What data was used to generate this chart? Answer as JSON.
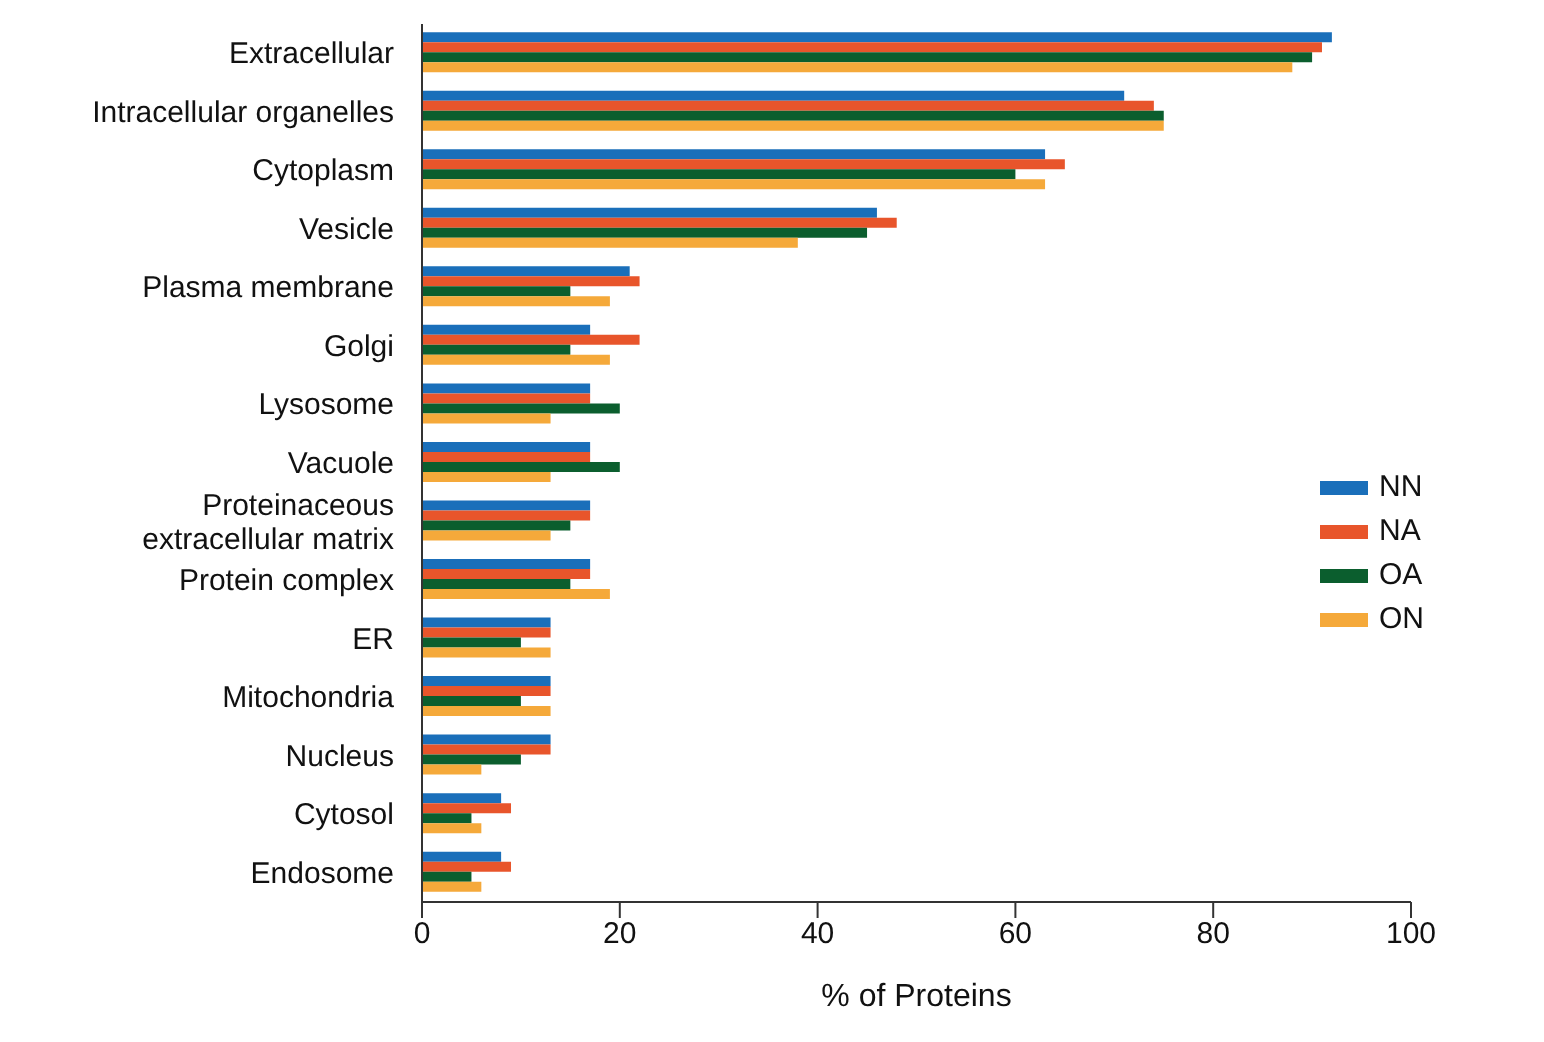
{
  "chart_data": {
    "type": "bar",
    "orientation": "horizontal",
    "xlabel": "% of Proteins",
    "categories": [
      "Extracellular",
      "Intracellular organelles",
      "Cytoplasm",
      "Vesicle",
      "Plasma membrane",
      "Golgi",
      "Lysosome",
      "Vacuole",
      "Proteinaceous extracellular matrix",
      "Protein complex",
      "ER",
      "Mitochondria",
      "Nucleus",
      "Cytosol",
      "Endosome"
    ],
    "series": [
      {
        "name": "NN",
        "color": "#1a6fba",
        "values": [
          92,
          71,
          63,
          46,
          21,
          17,
          17,
          17,
          17,
          17,
          13,
          13,
          13,
          8,
          8
        ]
      },
      {
        "name": "NA",
        "color": "#e8552b",
        "values": [
          91,
          74,
          65,
          48,
          22,
          22,
          17,
          17,
          17,
          17,
          13,
          13,
          13,
          9,
          9
        ]
      },
      {
        "name": "OA",
        "color": "#0b5e2e",
        "values": [
          90,
          75,
          60,
          45,
          15,
          15,
          20,
          20,
          15,
          15,
          10,
          10,
          10,
          5,
          5
        ]
      },
      {
        "name": "ON",
        "color": "#f5a93a",
        "values": [
          88,
          75,
          63,
          38,
          19,
          19,
          13,
          13,
          13,
          19,
          13,
          13,
          6,
          6,
          6
        ]
      }
    ],
    "xlim": [
      0,
      100
    ],
    "xticks": [
      0,
      20,
      40,
      60,
      80,
      100
    ],
    "grid": false,
    "legend": "right"
  }
}
